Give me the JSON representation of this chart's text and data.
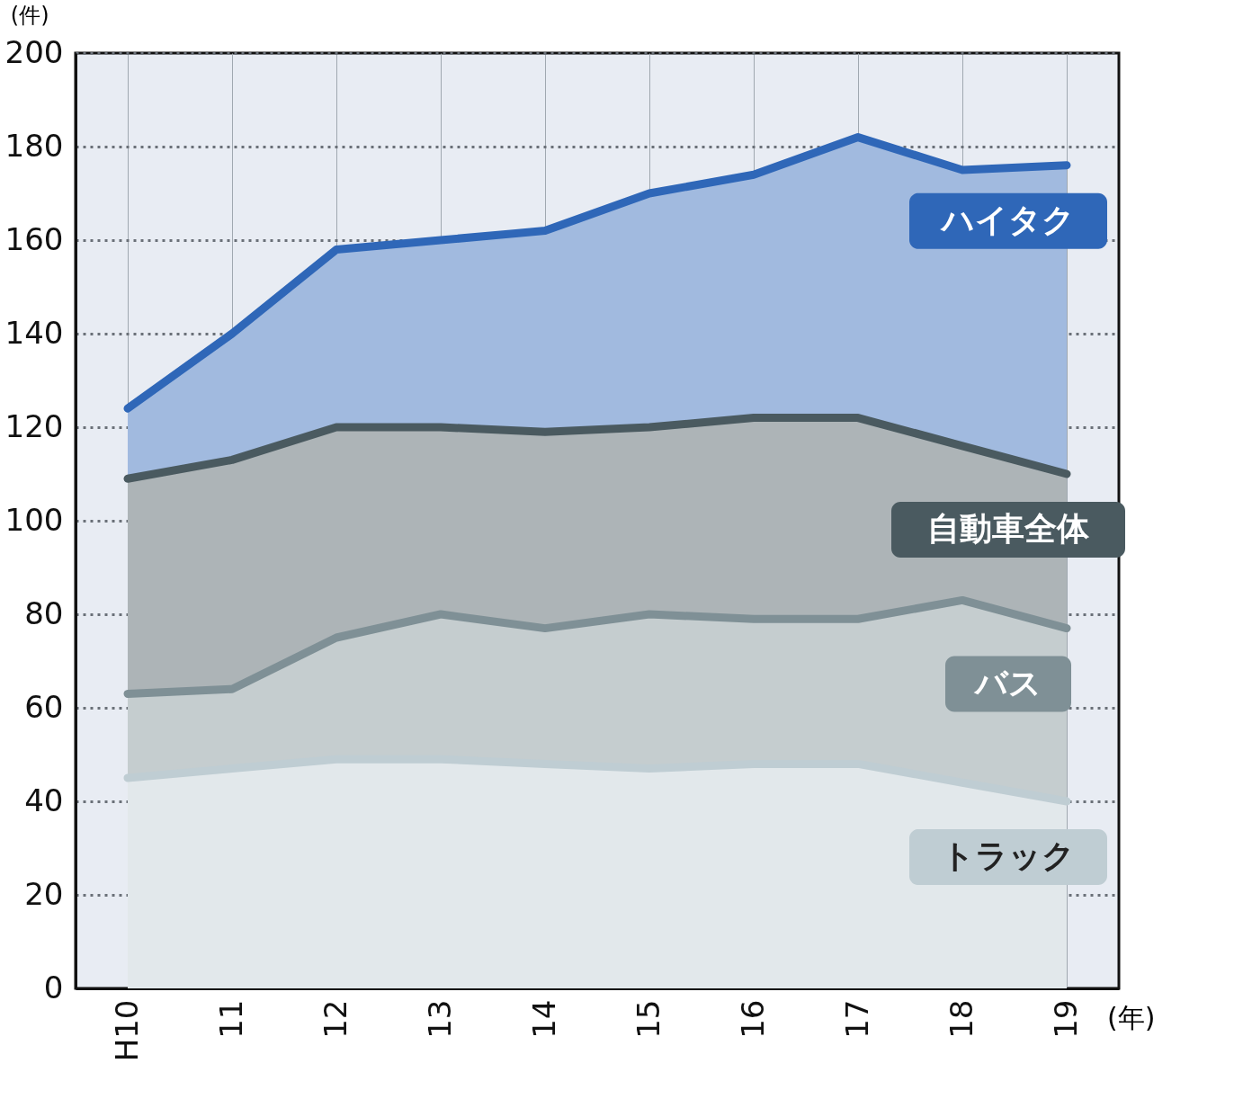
{
  "chart_data": {
    "type": "area",
    "ylabel": "(件)",
    "xlabel": "(年)",
    "categories": [
      "H10",
      "11",
      "12",
      "13",
      "14",
      "15",
      "16",
      "17",
      "18",
      "19"
    ],
    "series": [
      {
        "name": "ハイタク",
        "color": "#2f67b8",
        "values": [
          124,
          140,
          158,
          160,
          162,
          170,
          174,
          182,
          175,
          176
        ]
      },
      {
        "name": "自動車全体",
        "color": "#4a5a60",
        "values": [
          109,
          113,
          120,
          120,
          119,
          120,
          122,
          122,
          116,
          110
        ]
      },
      {
        "name": "バス",
        "color": "#7f9096",
        "values": [
          63,
          64,
          75,
          80,
          77,
          80,
          79,
          79,
          83,
          77
        ]
      },
      {
        "name": "トラック",
        "color": "#bfcdd3",
        "values": [
          45,
          47,
          49,
          49,
          48,
          47,
          48,
          48,
          44,
          40
        ]
      }
    ],
    "ylim": [
      0,
      200
    ],
    "yticks": [
      0,
      20,
      40,
      60,
      80,
      100,
      120,
      140,
      160,
      180,
      200
    ],
    "grid": true,
    "legend": false
  }
}
